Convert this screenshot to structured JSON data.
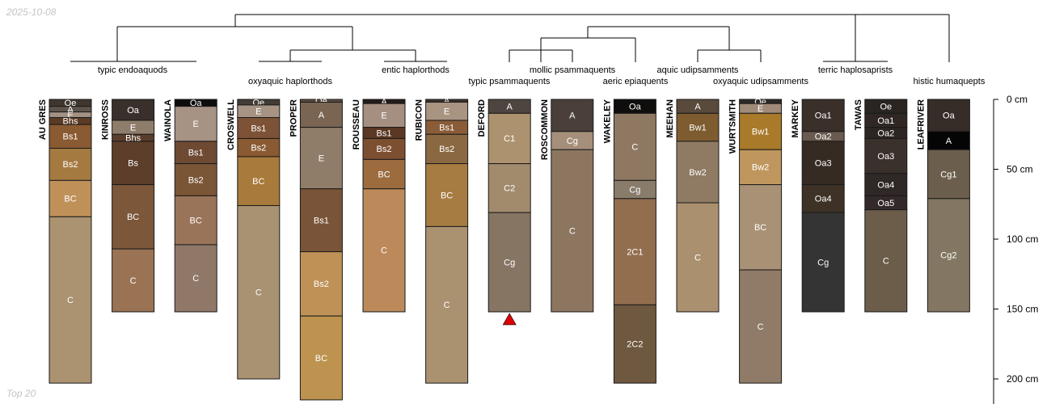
{
  "header": {
    "date": "2025-10-08"
  },
  "footer": {
    "label": "Top 20"
  },
  "chart_data": {
    "type": "soil-profile-dendrogram",
    "depth_axis": {
      "unit": "cm",
      "ticks": [
        0,
        50,
        100,
        150,
        200
      ],
      "range": [
        0,
        215
      ]
    },
    "tick_labels": [
      "0 cm",
      "50 cm",
      "100 cm",
      "150 cm",
      "200 cm"
    ],
    "profiles": [
      {
        "name": "AU GRES",
        "horizons": [
          {
            "h": "Oe",
            "top": 0,
            "bottom": 5,
            "color": "#3f3630"
          },
          {
            "h": "A",
            "top": 5,
            "bottom": 9,
            "color": "#5e544b"
          },
          {
            "h": "E",
            "top": 9,
            "bottom": 13,
            "color": "#a39184"
          },
          {
            "h": "Bhs",
            "top": 13,
            "bottom": 18,
            "color": "#5b3b24"
          },
          {
            "h": "Bs1",
            "top": 18,
            "bottom": 35,
            "color": "#8a5a32"
          },
          {
            "h": "Bs2",
            "top": 35,
            "bottom": 58,
            "color": "#a57a41"
          },
          {
            "h": "BC",
            "top": 58,
            "bottom": 84,
            "color": "#bf9159"
          },
          {
            "h": "C",
            "top": 84,
            "bottom": 203,
            "color": "#ab9270"
          }
        ]
      },
      {
        "name": "KINROSS",
        "horizons": [
          {
            "h": "Oa",
            "top": 0,
            "bottom": 15,
            "color": "#3a302b"
          },
          {
            "h": "E",
            "top": 15,
            "bottom": 25,
            "color": "#8f7d6c"
          },
          {
            "h": "Bhs",
            "top": 25,
            "bottom": 30,
            "color": "#5a3d2b"
          },
          {
            "h": "Bs",
            "top": 30,
            "bottom": 61,
            "color": "#5c3e2a"
          },
          {
            "h": "BC",
            "top": 61,
            "bottom": 107,
            "color": "#7d573a"
          },
          {
            "h": "C",
            "top": 107,
            "bottom": 152,
            "color": "#9a7354"
          }
        ]
      },
      {
        "name": "WAINOLA",
        "horizons": [
          {
            "h": "Oa",
            "top": 0,
            "bottom": 5,
            "color": "#0e0d0c"
          },
          {
            "h": "E",
            "top": 5,
            "bottom": 30,
            "color": "#a69384"
          },
          {
            "h": "Bs1",
            "top": 30,
            "bottom": 46,
            "color": "#6e4a33"
          },
          {
            "h": "Bs2",
            "top": 46,
            "bottom": 69,
            "color": "#7b5636"
          },
          {
            "h": "BC",
            "top": 69,
            "bottom": 104,
            "color": "#9a7458"
          },
          {
            "h": "C",
            "top": 104,
            "bottom": 152,
            "color": "#8f7868"
          }
        ]
      },
      {
        "name": "CROSWELL",
        "horizons": [
          {
            "h": "Oe",
            "top": 0,
            "bottom": 4,
            "color": "#423b36"
          },
          {
            "h": "E",
            "top": 4,
            "bottom": 13,
            "color": "#a69384"
          },
          {
            "h": "Bs1",
            "top": 13,
            "bottom": 28,
            "color": "#7d5236"
          },
          {
            "h": "Bs2",
            "top": 28,
            "bottom": 41,
            "color": "#8a5a32"
          },
          {
            "h": "BC",
            "top": 41,
            "bottom": 76,
            "color": "#a87a3b"
          },
          {
            "h": "C",
            "top": 76,
            "bottom": 200,
            "color": "#a89272"
          }
        ]
      },
      {
        "name": "PROPER",
        "horizons": [
          {
            "h": "Oe",
            "top": 0,
            "bottom": 2,
            "color": "#5a4b3f"
          },
          {
            "h": "A",
            "top": 2,
            "bottom": 20,
            "color": "#7a6552"
          },
          {
            "h": "E",
            "top": 20,
            "bottom": 64,
            "color": "#907d69"
          },
          {
            "h": "Bs1",
            "top": 64,
            "bottom": 109,
            "color": "#7a5438"
          },
          {
            "h": "Bs2",
            "top": 109,
            "bottom": 155,
            "color": "#bf9157"
          },
          {
            "h": "BC",
            "top": 155,
            "bottom": 215,
            "color": "#bd934f"
          }
        ]
      },
      {
        "name": "ROUSSEAU",
        "horizons": [
          {
            "h": "A",
            "top": 0,
            "bottom": 3,
            "color": "#231c17"
          },
          {
            "h": "E",
            "top": 3,
            "bottom": 20,
            "color": "#a58f80"
          },
          {
            "h": "Bs1",
            "top": 20,
            "bottom": 28,
            "color": "#5b3824"
          },
          {
            "h": "Bs2",
            "top": 28,
            "bottom": 43,
            "color": "#7d4f31"
          },
          {
            "h": "BC",
            "top": 43,
            "bottom": 64,
            "color": "#9c6c3f"
          },
          {
            "h": "C",
            "top": 64,
            "bottom": 152,
            "color": "#bc8a5a"
          }
        ]
      },
      {
        "name": "RUBICON",
        "horizons": [
          {
            "h": "A",
            "top": 0,
            "bottom": 2,
            "color": "#3c332c"
          },
          {
            "h": "E",
            "top": 2,
            "bottom": 15,
            "color": "#a99482"
          },
          {
            "h": "Bs1",
            "top": 15,
            "bottom": 25,
            "color": "#8a5c37"
          },
          {
            "h": "Bs2",
            "top": 25,
            "bottom": 46,
            "color": "#8a6841"
          },
          {
            "h": "BC",
            "top": 46,
            "bottom": 91,
            "color": "#a77c42"
          },
          {
            "h": "C",
            "top": 91,
            "bottom": 203,
            "color": "#aa9270"
          }
        ]
      },
      {
        "name": "DEFORD",
        "horizons": [
          {
            "h": "A",
            "top": 0,
            "bottom": 10,
            "color": "#4f4540"
          },
          {
            "h": "C1",
            "top": 10,
            "bottom": 46,
            "color": "#ad926f"
          },
          {
            "h": "C2",
            "top": 46,
            "bottom": 81,
            "color": "#a28a6d"
          },
          {
            "h": "Cg",
            "top": 81,
            "bottom": 152,
            "color": "#877564"
          }
        ]
      },
      {
        "name": "ROSCOMMON",
        "horizons": [
          {
            "h": "A",
            "top": 0,
            "bottom": 23,
            "color": "#4a4039"
          },
          {
            "h": "Cg",
            "top": 23,
            "bottom": 36,
            "color": "#a58f7b"
          },
          {
            "h": "C",
            "top": 36,
            "bottom": 152,
            "color": "#8c7660"
          }
        ]
      },
      {
        "name": "WAKELEY",
        "horizons": [
          {
            "h": "Oa",
            "top": 0,
            "bottom": 10,
            "color": "#0f0e0d"
          },
          {
            "h": "C",
            "top": 10,
            "bottom": 58,
            "color": "#8e7861"
          },
          {
            "h": "Cg",
            "top": 58,
            "bottom": 71,
            "color": "#8a7c6b"
          },
          {
            "h": "2C1",
            "top": 71,
            "bottom": 147,
            "color": "#926e4f"
          },
          {
            "h": "2C2",
            "top": 147,
            "bottom": 203,
            "color": "#6e583f"
          }
        ]
      },
      {
        "name": "MEEHAN",
        "horizons": [
          {
            "h": "A",
            "top": 0,
            "bottom": 10,
            "color": "#5a4a3c"
          },
          {
            "h": "Bw1",
            "top": 10,
            "bottom": 30,
            "color": "#7e5c2f"
          },
          {
            "h": "Bw2",
            "top": 30,
            "bottom": 74,
            "color": "#8f7b63"
          },
          {
            "h": "C",
            "top": 74,
            "bottom": 152,
            "color": "#ab9070"
          }
        ]
      },
      {
        "name": "WURTSMITH",
        "horizons": [
          {
            "h": "Oe",
            "top": 0,
            "bottom": 3,
            "color": "#2f2a26"
          },
          {
            "h": "E",
            "top": 3,
            "bottom": 10,
            "color": "#a08b78"
          },
          {
            "h": "Bw1",
            "top": 10,
            "bottom": 36,
            "color": "#a87a2a"
          },
          {
            "h": "Bw2",
            "top": 36,
            "bottom": 61,
            "color": "#bf975e"
          },
          {
            "h": "BC",
            "top": 61,
            "bottom": 122,
            "color": "#a89174"
          },
          {
            "h": "C",
            "top": 122,
            "bottom": 203,
            "color": "#8f7b67"
          }
        ]
      },
      {
        "name": "MARKEY",
        "horizons": [
          {
            "h": "Oa1",
            "top": 0,
            "bottom": 23,
            "color": "#3a2f29"
          },
          {
            "h": "Oa2",
            "top": 23,
            "bottom": 30,
            "color": "#6a5a50"
          },
          {
            "h": "Oa3",
            "top": 30,
            "bottom": 61,
            "color": "#352b23"
          },
          {
            "h": "Oa4",
            "top": 61,
            "bottom": 81,
            "color": "#3e3126"
          },
          {
            "h": "Cg",
            "top": 81,
            "bottom": 152,
            "color": "#353435"
          }
        ]
      },
      {
        "name": "TAWAS",
        "horizons": [
          {
            "h": "Oe",
            "top": 0,
            "bottom": 10,
            "color": "#2b2522"
          },
          {
            "h": "Oa1",
            "top": 10,
            "bottom": 20,
            "color": "#302724"
          },
          {
            "h": "Oa2",
            "top": 20,
            "bottom": 28,
            "color": "#2d2523"
          },
          {
            "h": "Oa3",
            "top": 28,
            "bottom": 53,
            "color": "#3a302c"
          },
          {
            "h": "Oa4",
            "top": 53,
            "bottom": 69,
            "color": "#302826"
          },
          {
            "h": "Oa5",
            "top": 69,
            "bottom": 79,
            "color": "#33282a"
          },
          {
            "h": "C",
            "top": 79,
            "bottom": 152,
            "color": "#6c5d4b"
          }
        ]
      },
      {
        "name": "LEAFRIVER",
        "horizons": [
          {
            "h": "Oa",
            "top": 0,
            "bottom": 23,
            "color": "#362d29"
          },
          {
            "h": "A",
            "top": 23,
            "bottom": 36,
            "color": "#060505"
          },
          {
            "h": "Cg1",
            "top": 36,
            "bottom": 71,
            "color": "#6c5e4d"
          },
          {
            "h": "Cg2",
            "top": 71,
            "bottom": 152,
            "color": "#837763"
          }
        ]
      }
    ],
    "marker": {
      "profile": "DEFORD",
      "shape": "triangle-up",
      "color": "#e00000"
    },
    "taxonomic_groups": [
      "typic endoaquods",
      "oxyaquic haplorthods",
      "entic haplorthods",
      "typic psammaquents",
      "mollic psammaquents",
      "aeric epiaquents",
      "aquic udipsamments",
      "oxyaquic udipsamments",
      "terric haplosaprists",
      "histic humaquepts"
    ],
    "colors": {
      "line": "#000000",
      "horizon_border": "#1a1a1a",
      "marker": "#e00000",
      "corner_text": "#c4c4c4"
    }
  }
}
